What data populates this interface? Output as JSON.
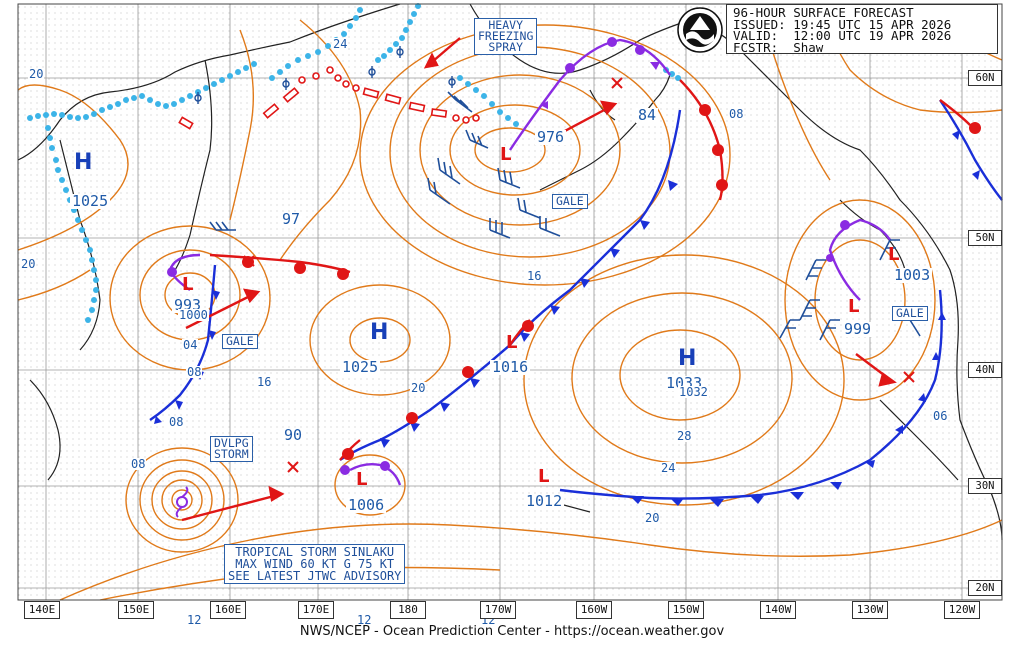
{
  "header": {
    "line1": "96-HOUR SURFACE FORECAST",
    "line2": "ISSUED: 19:45 UTC 15 APR 2026",
    "line3": "VALID:  12:00 UTC 19 APR 2026",
    "line4": "FCSTR:  Shaw"
  },
  "logo_text": "NOAA",
  "footer": "NWS/NCEP - Ocean Prediction Center - https://ocean.weather.gov",
  "longitude_labels": [
    "140E",
    "150E",
    "160E",
    "170E",
    "180",
    "170W",
    "160W",
    "150W",
    "140W",
    "130W",
    "120W"
  ],
  "latitude_labels": [
    "60N",
    "50N",
    "40N",
    "30N",
    "20N"
  ],
  "pressure_centers": {
    "high_w": "1025",
    "low_nw_value": "976",
    "low_nw2": "84",
    "low_w_value": "993",
    "low_w_sub": "1000",
    "high_central_w": "1025",
    "low_center_pac": "1016",
    "high_east": "1032",
    "high_east_over": "1033",
    "low_e1": "1003",
    "low_e2": "999",
    "low_sw": "1006",
    "low_s": "1012",
    "val_97": "97",
    "val_90": "90"
  },
  "isobar_labels": [
    "24",
    "20",
    "20",
    "08",
    "04",
    "08",
    "16",
    "20",
    "16",
    "28",
    "24",
    "20",
    "08",
    "06",
    "08",
    "12",
    "12",
    "12"
  ],
  "warnings": {
    "heavy_freezing_spray": "HEAVY\nFREEZING\nSPRAY",
    "gale_1": "GALE",
    "gale_2": "GALE",
    "gale_3": "GALE",
    "dvlpg_storm": "DVLPG\nSTORM",
    "tropical_storm": "TROPICAL STORM SINLAKU\nMAX WIND 60 KT G 75 KT\nSEE LATEST JTWC ADVISORY"
  },
  "colors": {
    "isobar": "#e07a1a",
    "cold_front": "#1a2fd8",
    "warm_front": "#e01616",
    "occluded": "#8a2be2",
    "ice": "#3cb4e8",
    "label_blue": "#1f4f9a"
  }
}
